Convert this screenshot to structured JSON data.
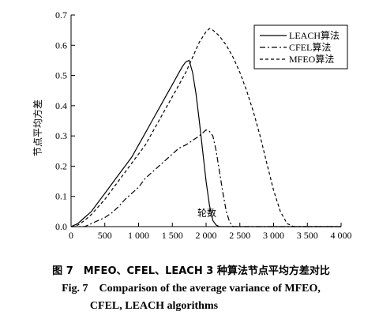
{
  "chart_data": {
    "type": "line",
    "xlabel": "轮数",
    "ylabel": "节点平均方差",
    "xlim": [
      0,
      4000
    ],
    "ylim": [
      0,
      0.7
    ],
    "x_ticks": [
      0,
      500,
      1000,
      1500,
      2000,
      2500,
      3000,
      3500,
      4000
    ],
    "x_tick_labels": [
      "0",
      "500",
      "1 000",
      "1 500",
      "2 000",
      "2 500",
      "3 000",
      "3 500",
      "4 000"
    ],
    "y_ticks": [
      0.0,
      0.1,
      0.2,
      0.3,
      0.4,
      0.5,
      0.6,
      0.7
    ],
    "y_tick_labels": [
      "0.0",
      "0.1",
      "0.2",
      "0.3",
      "0.4",
      "0.5",
      "0.6",
      "0.7"
    ],
    "grid": false,
    "legend_position": "top-right",
    "series": [
      {
        "name": "LEACH算法",
        "style": "solid",
        "points": [
          [
            0,
            0.0
          ],
          [
            100,
            0.01
          ],
          [
            200,
            0.03
          ],
          [
            300,
            0.05
          ],
          [
            400,
            0.08
          ],
          [
            500,
            0.11
          ],
          [
            600,
            0.14
          ],
          [
            700,
            0.17
          ],
          [
            800,
            0.2
          ],
          [
            900,
            0.23
          ],
          [
            1000,
            0.27
          ],
          [
            1100,
            0.31
          ],
          [
            1200,
            0.35
          ],
          [
            1300,
            0.39
          ],
          [
            1400,
            0.43
          ],
          [
            1500,
            0.47
          ],
          [
            1600,
            0.51
          ],
          [
            1650,
            0.53
          ],
          [
            1700,
            0.545
          ],
          [
            1750,
            0.55
          ],
          [
            1800,
            0.51
          ],
          [
            1850,
            0.44
          ],
          [
            1900,
            0.35
          ],
          [
            1950,
            0.25
          ],
          [
            2000,
            0.15
          ],
          [
            2050,
            0.07
          ],
          [
            2100,
            0.02
          ],
          [
            2150,
            0.005
          ],
          [
            2200,
            0.0
          ],
          [
            4000,
            0.0
          ]
        ]
      },
      {
        "name": "CFEL算法",
        "style": "dashdot",
        "points": [
          [
            0,
            0.0
          ],
          [
            200,
            0.0
          ],
          [
            300,
            0.01
          ],
          [
            400,
            0.02
          ],
          [
            500,
            0.03
          ],
          [
            600,
            0.045
          ],
          [
            700,
            0.065
          ],
          [
            800,
            0.09
          ],
          [
            900,
            0.11
          ],
          [
            1000,
            0.13
          ],
          [
            1100,
            0.16
          ],
          [
            1200,
            0.18
          ],
          [
            1300,
            0.2
          ],
          [
            1400,
            0.22
          ],
          [
            1500,
            0.24
          ],
          [
            1600,
            0.26
          ],
          [
            1700,
            0.27
          ],
          [
            1800,
            0.285
          ],
          [
            1900,
            0.3
          ],
          [
            2000,
            0.32
          ],
          [
            2050,
            0.315
          ],
          [
            2100,
            0.3
          ],
          [
            2150,
            0.25
          ],
          [
            2200,
            0.18
          ],
          [
            2250,
            0.11
          ],
          [
            2300,
            0.05
          ],
          [
            2350,
            0.015
          ],
          [
            2400,
            0.0
          ],
          [
            4000,
            0.0
          ]
        ]
      },
      {
        "name": "MFEO算法",
        "style": "dashed",
        "points": [
          [
            0,
            0.0
          ],
          [
            100,
            0.005
          ],
          [
            200,
            0.02
          ],
          [
            300,
            0.04
          ],
          [
            400,
            0.065
          ],
          [
            500,
            0.09
          ],
          [
            600,
            0.12
          ],
          [
            700,
            0.15
          ],
          [
            800,
            0.18
          ],
          [
            900,
            0.21
          ],
          [
            1000,
            0.24
          ],
          [
            1100,
            0.27
          ],
          [
            1200,
            0.31
          ],
          [
            1300,
            0.35
          ],
          [
            1400,
            0.39
          ],
          [
            1500,
            0.43
          ],
          [
            1600,
            0.47
          ],
          [
            1700,
            0.51
          ],
          [
            1800,
            0.56
          ],
          [
            1900,
            0.61
          ],
          [
            2000,
            0.645
          ],
          [
            2050,
            0.655
          ],
          [
            2100,
            0.65
          ],
          [
            2200,
            0.63
          ],
          [
            2300,
            0.6
          ],
          [
            2400,
            0.56
          ],
          [
            2500,
            0.51
          ],
          [
            2600,
            0.45
          ],
          [
            2700,
            0.38
          ],
          [
            2800,
            0.3
          ],
          [
            2900,
            0.21
          ],
          [
            3000,
            0.12
          ],
          [
            3100,
            0.05
          ],
          [
            3200,
            0.01
          ],
          [
            3300,
            0.0
          ],
          [
            4000,
            0.0
          ]
        ]
      }
    ]
  },
  "caption": {
    "cn": "图 7　MFEO、CFEL、LEACH 3 种算法节点平均方差对比",
    "en_line1": "Fig. 7　Comparison of the average variance of MFEO,",
    "en_line2": "CFEL, LEACH algorithms"
  }
}
